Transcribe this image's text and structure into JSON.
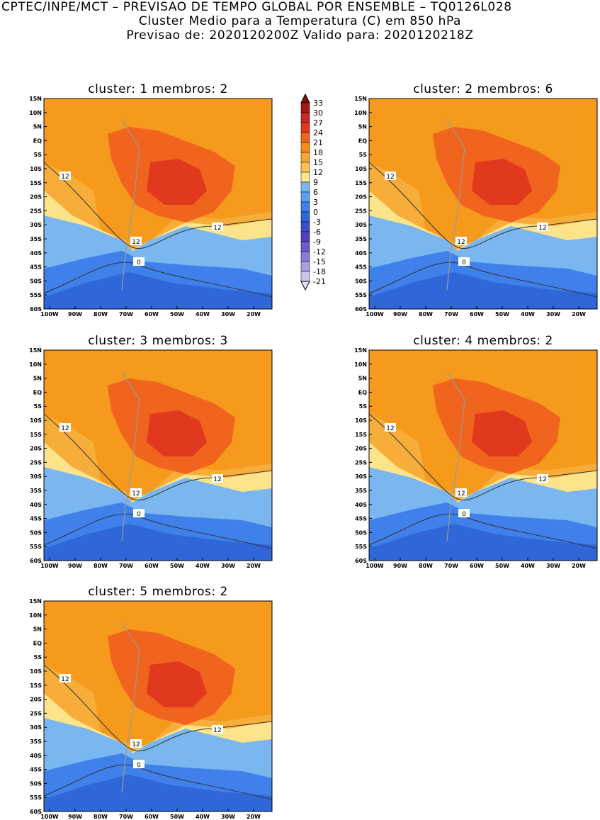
{
  "header": {
    "line1": "CPTEC/INPE/MCT – PREVISAO DE TEMPO GLOBAL POR ENSEMBLE – TQ0126L028",
    "line2": "Cluster Medio para a Temperatura (C) em 850 hPa",
    "line3": "Previsao de: 2020120200Z   Valido para: 2020120218Z"
  },
  "axes": {
    "lat_ticks": [
      "15N",
      "10N",
      "5N",
      "EQ",
      "5S",
      "10S",
      "15S",
      "20S",
      "25S",
      "30S",
      "35S",
      "40S",
      "45S",
      "50S",
      "55S",
      "60S"
    ],
    "lon_ticks": [
      "100W",
      "90W",
      "80W",
      "70W",
      "60W",
      "50W",
      "40W",
      "30W",
      "20W"
    ]
  },
  "colorbar": {
    "labels": [
      "33",
      "30",
      "27",
      "24",
      "21",
      "18",
      "15",
      "12",
      "9",
      "6",
      "3",
      "0",
      "-3",
      "-6",
      "-9",
      "-12",
      "-15",
      "-18",
      "-21"
    ],
    "colors": [
      "#7a1010",
      "#a51818",
      "#c72a22",
      "#e0391e",
      "#f0641e",
      "#f58c1c",
      "#f7a533",
      "#fbc050",
      "#fde48b",
      "#7ab7f0",
      "#5b9ef0",
      "#3f80ea",
      "#2f66d8",
      "#3b4ec8",
      "#5040c0",
      "#6a5acd",
      "#8a7bd8",
      "#aa9de2",
      "#cbc3ee",
      "#e6e1f6"
    ]
  },
  "panels": [
    {
      "title": "cluster: 1   membros: 2",
      "contour_labels": [
        "12",
        "12",
        "12",
        "0"
      ]
    },
    {
      "title": "cluster: 2   membros: 6",
      "contour_labels": [
        "12",
        "12",
        "12",
        "0"
      ]
    },
    {
      "title": "cluster: 3   membros: 3",
      "contour_labels": [
        "12",
        "12",
        "12",
        "0"
      ]
    },
    {
      "title": "cluster: 4   membros: 2",
      "contour_labels": [
        "12",
        "12",
        "12",
        "0"
      ]
    },
    {
      "title": "cluster: 5   membros: 2",
      "contour_labels": [
        "12",
        "12",
        "12",
        "0"
      ]
    }
  ]
}
